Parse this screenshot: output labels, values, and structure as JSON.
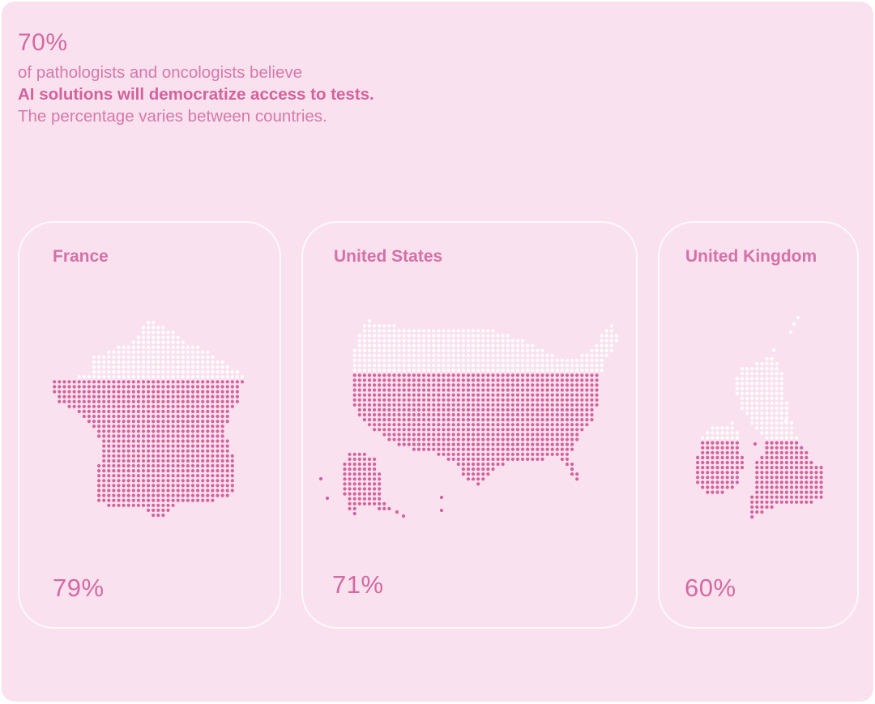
{
  "headline": {
    "value": "70%"
  },
  "intro": {
    "line1": "of pathologists and oncologists believe",
    "line2": "AI solutions will democratize access to tests.",
    "line3": "The percentage varies between countries."
  },
  "countries": [
    {
      "name": "France",
      "value_label": "79%",
      "value": 79
    },
    {
      "name": "United States",
      "value_label": "71%",
      "value": 71
    },
    {
      "name": "United Kingdom",
      "value_label": "60%",
      "value": 60
    }
  ],
  "colors": {
    "background": "#f9e1ef",
    "accent": "#d4629b",
    "filled_dot": "#d4629b",
    "empty_dot": "#ffffff"
  }
}
